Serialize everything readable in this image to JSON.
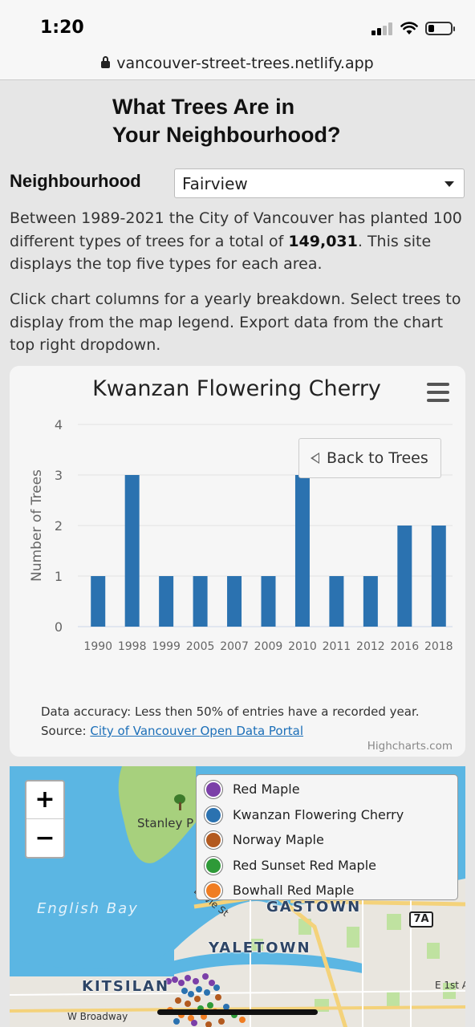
{
  "status_bar": {
    "time": "1:20"
  },
  "url_bar": {
    "url": "vancouver-street-trees.netlify.app"
  },
  "header": {
    "title_line1": "What Trees Are in",
    "title_line2": "Your Neighbourhood?"
  },
  "controls": {
    "neighbourhood_label": "Neighbourhood",
    "neighbourhood_value": "Fairview"
  },
  "intro": {
    "text_before": "Between 1989-2021 the City of Vancouver has planted 100 different types of trees for a total of ",
    "total": "149,031",
    "text_after": ". This site displays the top five types for each area.",
    "instructions": "Click chart columns for a yearly breakdown. Select trees to display from the map legend. Export data from the chart top right dropdown."
  },
  "chart": {
    "back_label": "Back to Trees",
    "caption_accuracy": "Data accuracy: Less then 50% of entries have a recorded year.",
    "caption_source_prefix": "Source: ",
    "caption_source_link": "City of Vancouver Open Data Portal",
    "credits": "Highcharts.com",
    "menu_icon": "hamburger-icon",
    "bar_color": "#2b72b0"
  },
  "chart_data": {
    "type": "bar",
    "title": "Kwanzan Flowering Cherry",
    "ylabel": "Number of Trees",
    "xlabel": "",
    "categories": [
      "1990",
      "1998",
      "1999",
      "2005",
      "2007",
      "2009",
      "2010",
      "2011",
      "2012",
      "2016",
      "2018"
    ],
    "values": [
      1,
      3,
      1,
      1,
      1,
      1,
      3,
      1,
      1,
      2,
      2
    ],
    "yticks": [
      0,
      1,
      2,
      3,
      4
    ],
    "ylim": [
      0,
      4
    ],
    "grid": true,
    "legend": "none"
  },
  "map": {
    "zoom_in": "+",
    "zoom_out": "−",
    "legend": [
      {
        "label": "Red Maple",
        "color": "#7b3fa8"
      },
      {
        "label": "Kwanzan Flowering Cherry",
        "color": "#2b72b0"
      },
      {
        "label": "Norway Maple",
        "color": "#b35a1f"
      },
      {
        "label": "Red Sunset Red Maple",
        "color": "#2e9a38"
      },
      {
        "label": "Bowhall Red Maple",
        "color": "#f07d22"
      }
    ],
    "labels": {
      "stanley_park": "Stanley P",
      "english_bay": "English Bay",
      "gastown": "GASTOWN",
      "yaletown": "YALETOWN",
      "kitsilano": "KITSILAN",
      "davie_st": "Davie St",
      "w_broadway": "W Broadway",
      "e_1st": "E 1st A",
      "route": "7A"
    },
    "water_color": "#5bb6e3",
    "park_color": "#a7d07d"
  }
}
